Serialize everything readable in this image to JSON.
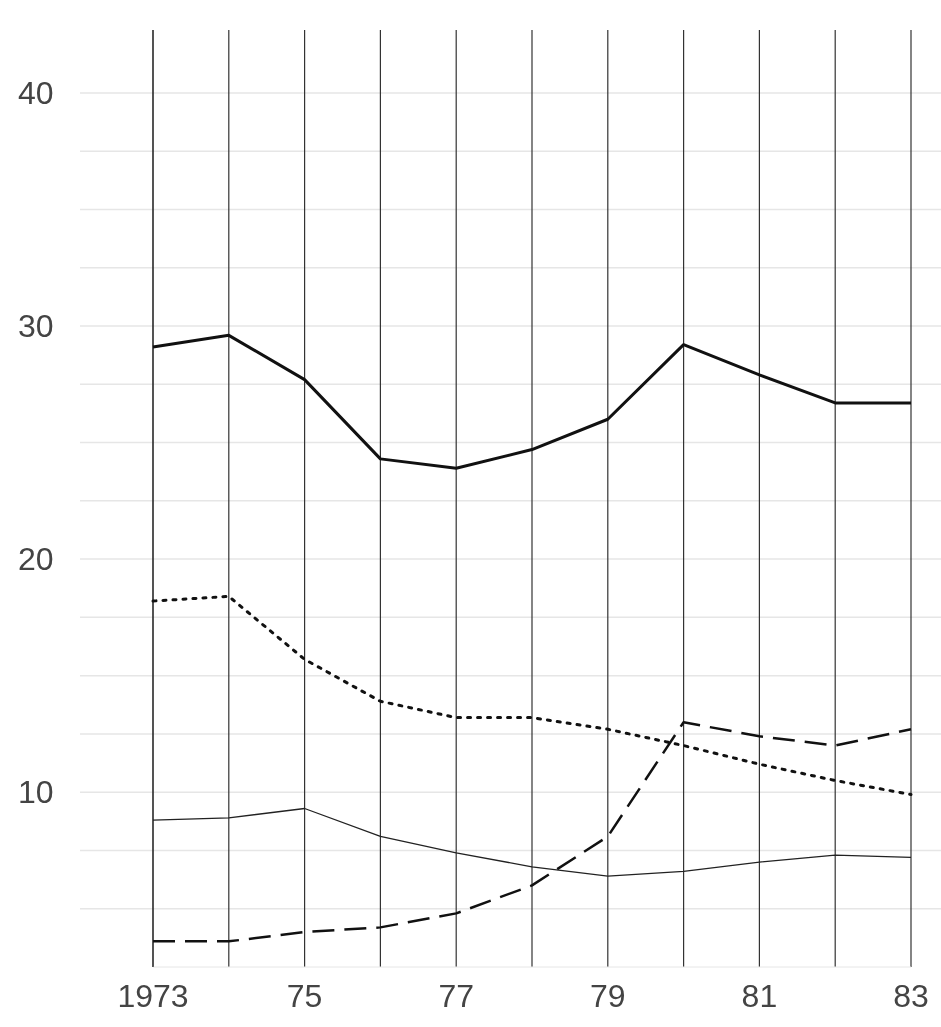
{
  "chart_data": {
    "type": "line",
    "x": [
      1973,
      1974,
      1975,
      1976,
      1977,
      1978,
      1979,
      1980,
      1981,
      1982,
      1983
    ],
    "series": [
      {
        "color": "#111111",
        "line_style": "solid",
        "values": [
          29.1,
          29.6,
          27.7,
          24.3,
          23.9,
          24.7,
          26.0,
          29.2,
          27.9,
          26.7,
          26.7
        ]
      },
      {
        "color": "#111111",
        "line_style": "dotted",
        "values": [
          18.2,
          18.4,
          15.7,
          13.9,
          13.2,
          13.2,
          12.7,
          12.0,
          11.2,
          10.5,
          9.9
        ]
      },
      {
        "color": "#222222",
        "line_style": "solid",
        "values": [
          8.8,
          8.9,
          9.3,
          8.1,
          7.4,
          6.8,
          6.4,
          6.6,
          7.0,
          7.3,
          7.2
        ]
      },
      {
        "color": "#111111",
        "line_style": "dashed",
        "values": [
          3.6,
          3.6,
          4.0,
          4.2,
          4.8,
          6.0,
          8.1,
          13.0,
          12.4,
          12.0,
          12.7
        ]
      }
    ],
    "xlim": [
      1973,
      1983
    ],
    "xticks": [
      {
        "value": 1973,
        "label": "1973"
      },
      {
        "value": 1974,
        "label": null
      },
      {
        "value": 1975,
        "label": "75"
      },
      {
        "value": 1976,
        "label": null
      },
      {
        "value": 1977,
        "label": "77"
      },
      {
        "value": 1978,
        "label": null
      },
      {
        "value": 1979,
        "label": "79"
      },
      {
        "value": 1980,
        "label": null
      },
      {
        "value": 1981,
        "label": "81"
      },
      {
        "value": 1982,
        "label": null
      },
      {
        "value": 1983,
        "label": "83"
      }
    ],
    "ylim": [
      2.5,
      42.7
    ],
    "yticks": [
      {
        "value": 5,
        "label": null
      },
      {
        "value": 7.5,
        "label": null
      },
      10,
      {
        "value": 12.5,
        "label": null
      },
      {
        "value": 15,
        "label": null
      },
      {
        "value": 17.5,
        "label": null
      },
      20,
      {
        "value": 22.5,
        "label": null
      },
      {
        "value": 25,
        "label": null
      },
      {
        "value": 27.5,
        "label": null
      },
      30,
      {
        "value": 32.5,
        "label": null
      },
      {
        "value": 35,
        "label": null
      },
      {
        "value": 37.5,
        "label": null
      },
      40
    ],
    "grid": true,
    "marker": "none"
  }
}
